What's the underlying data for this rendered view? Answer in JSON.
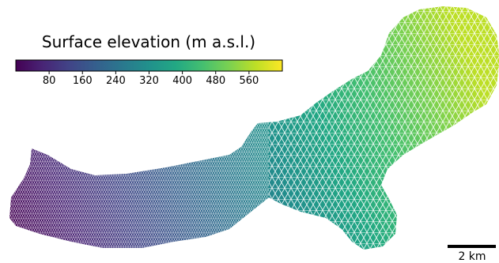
{
  "chart_data": {
    "type": "heatmap",
    "title": "",
    "colorbar": {
      "label": "Surface elevation (m a.s.l.)",
      "colormap": "viridis",
      "range": [
        0,
        640
      ],
      "ticks": [
        80,
        160,
        240,
        320,
        400,
        480,
        560
      ],
      "tick_labels": [
        "80",
        "160",
        "240",
        "320",
        "400",
        "480",
        "560"
      ],
      "placement": "top-left, horizontal"
    },
    "field": {
      "description_of_values": "surface elevation increasing from left end to upper-right end of glacier outline",
      "min_value": 0,
      "max_value": 610
    },
    "scale_bar": {
      "label": "2 km",
      "length_km": 2
    },
    "mesh": {
      "style": "triangular wireframe, finer on the left and in the middle narrowing"
    }
  }
}
